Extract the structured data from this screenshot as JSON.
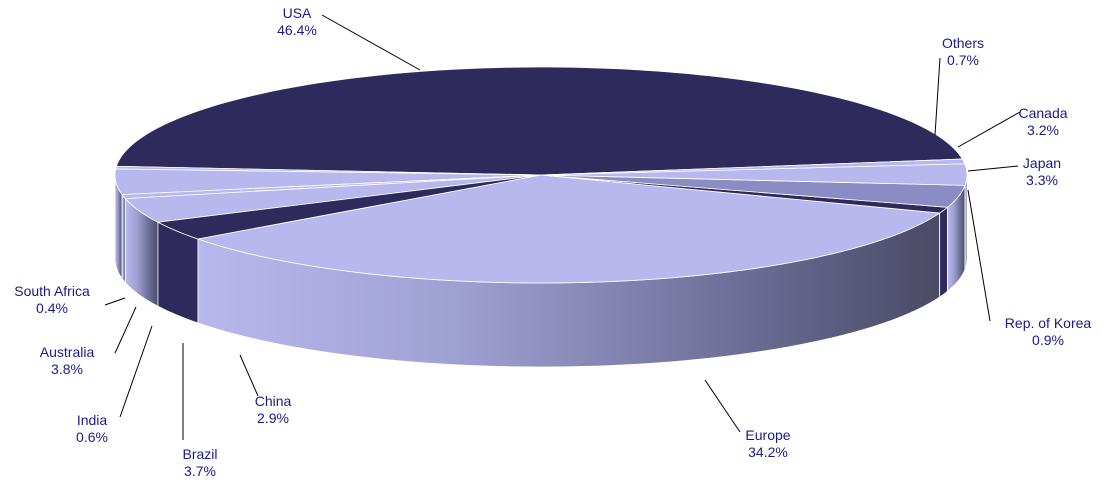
{
  "chart_data": {
    "type": "pie",
    "title": "",
    "slices": [
      {
        "label": "USA",
        "value": 46.4,
        "display": "46.4%"
      },
      {
        "label": "Others",
        "value": 0.7,
        "display": "0.7%"
      },
      {
        "label": "Canada",
        "value": 3.2,
        "display": "3.2%"
      },
      {
        "label": "Japan",
        "value": 3.3,
        "display": "3.3%"
      },
      {
        "label": "Rep. of Korea",
        "value": 0.9,
        "display": "0.9%"
      },
      {
        "label": "Europe",
        "value": 34.2,
        "display": "34.2%"
      },
      {
        "label": "China",
        "value": 2.9,
        "display": "2.9%"
      },
      {
        "label": "Brazil",
        "value": 3.7,
        "display": "3.7%"
      },
      {
        "label": "India",
        "value": 0.6,
        "display": "0.6%"
      },
      {
        "label": "Australia",
        "value": 3.8,
        "display": "3.8%"
      },
      {
        "label": "South Africa",
        "value": 0.4,
        "display": "0.4%"
      }
    ],
    "legend": "none",
    "three_d": true
  },
  "colors": {
    "dark": "#2e2b5c",
    "light": "#b9b8ee",
    "mid": "#8c8cc4",
    "label_text": "#1a1a8c"
  }
}
